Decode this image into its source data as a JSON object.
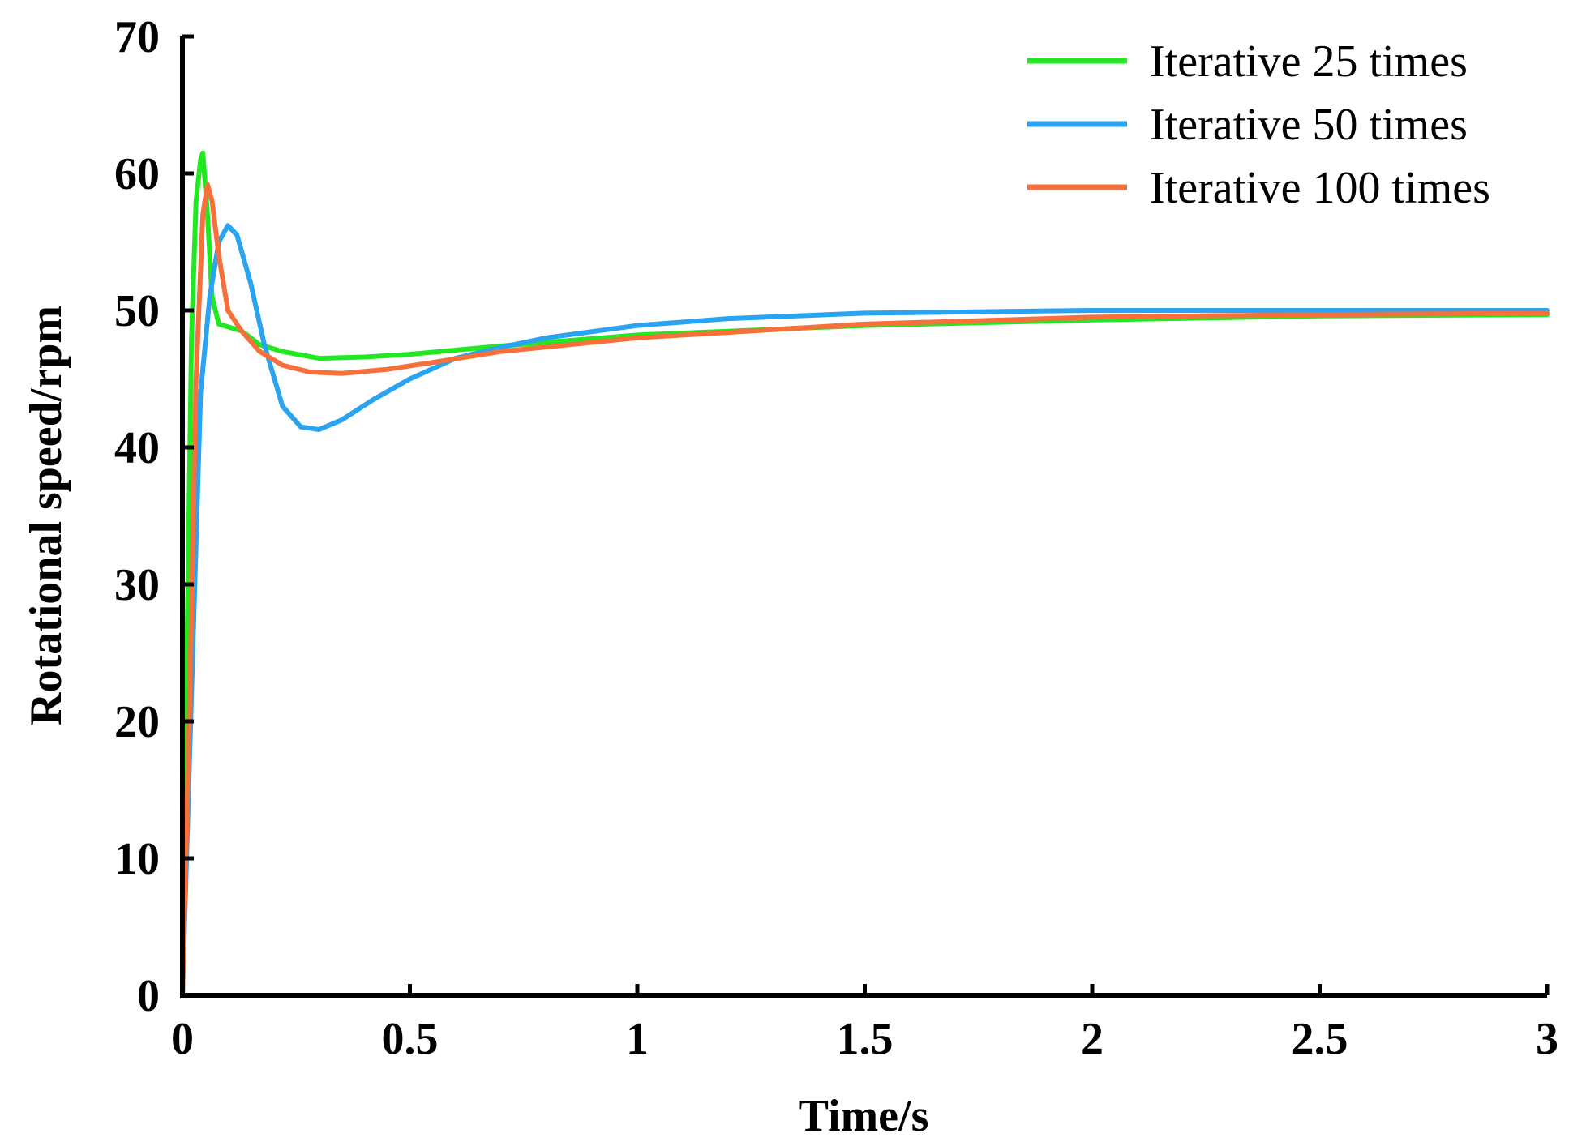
{
  "chart_data": {
    "type": "line",
    "title": "",
    "xlabel": "Time/s",
    "ylabel": "Rotational speed/rpm",
    "xlim": [
      0,
      3
    ],
    "ylim": [
      0,
      70
    ],
    "grid": false,
    "legend_position": "top-right",
    "x_ticks": [
      {
        "value": 0,
        "label": "0"
      },
      {
        "value": 0.5,
        "label": "0.5"
      },
      {
        "value": 1,
        "label": "1"
      },
      {
        "value": 1.5,
        "label": "1.5"
      },
      {
        "value": 2,
        "label": "2"
      },
      {
        "value": 2.5,
        "label": "2.5"
      },
      {
        "value": 3,
        "label": "3"
      }
    ],
    "y_ticks": [
      {
        "value": 0,
        "label": "0"
      },
      {
        "value": 10,
        "label": "10"
      },
      {
        "value": 20,
        "label": "20"
      },
      {
        "value": 30,
        "label": "30"
      },
      {
        "value": 40,
        "label": "40"
      },
      {
        "value": 50,
        "label": "50"
      },
      {
        "value": 60,
        "label": "60"
      },
      {
        "value": 70,
        "label": "70"
      }
    ],
    "series": [
      {
        "name": "Iterative 25 times",
        "color": "#22e822",
        "x": [
          0,
          0.01,
          0.02,
          0.03,
          0.04,
          0.045,
          0.055,
          0.065,
          0.08,
          0.1,
          0.13,
          0.17,
          0.22,
          0.3,
          0.4,
          0.5,
          0.7,
          1.0,
          1.5,
          2.0,
          2.5,
          3.0
        ],
        "y": [
          0,
          25,
          48,
          58,
          61,
          61.5,
          57,
          51,
          49,
          48.8,
          48.5,
          47.5,
          47,
          46.5,
          46.6,
          46.8,
          47.4,
          48.2,
          48.9,
          49.3,
          49.6,
          49.7
        ]
      },
      {
        "name": "Iterative 50 times",
        "color": "#2aa3f0",
        "x": [
          0,
          0.02,
          0.04,
          0.06,
          0.08,
          0.1,
          0.12,
          0.15,
          0.18,
          0.22,
          0.26,
          0.3,
          0.35,
          0.42,
          0.5,
          0.6,
          0.7,
          0.8,
          1.0,
          1.2,
          1.5,
          2.0,
          2.5,
          3.0
        ],
        "y": [
          0,
          22,
          44,
          51,
          55,
          56.2,
          55.5,
          52,
          47.5,
          43,
          41.5,
          41.3,
          42,
          43.5,
          45,
          46.5,
          47.3,
          48,
          48.9,
          49.4,
          49.8,
          50,
          50,
          50
        ]
      },
      {
        "name": "Iterative 100 times",
        "color": "#f5703a",
        "x": [
          0,
          0.015,
          0.03,
          0.045,
          0.055,
          0.065,
          0.08,
          0.1,
          0.13,
          0.17,
          0.22,
          0.28,
          0.35,
          0.45,
          0.55,
          0.7,
          1.0,
          1.5,
          2.0,
          2.5,
          3.0
        ],
        "y": [
          0,
          20,
          45,
          57,
          59.2,
          58,
          54,
          50,
          48.5,
          47,
          46,
          45.5,
          45.4,
          45.7,
          46.2,
          47,
          48,
          49,
          49.5,
          49.7,
          49.8
        ]
      }
    ]
  }
}
